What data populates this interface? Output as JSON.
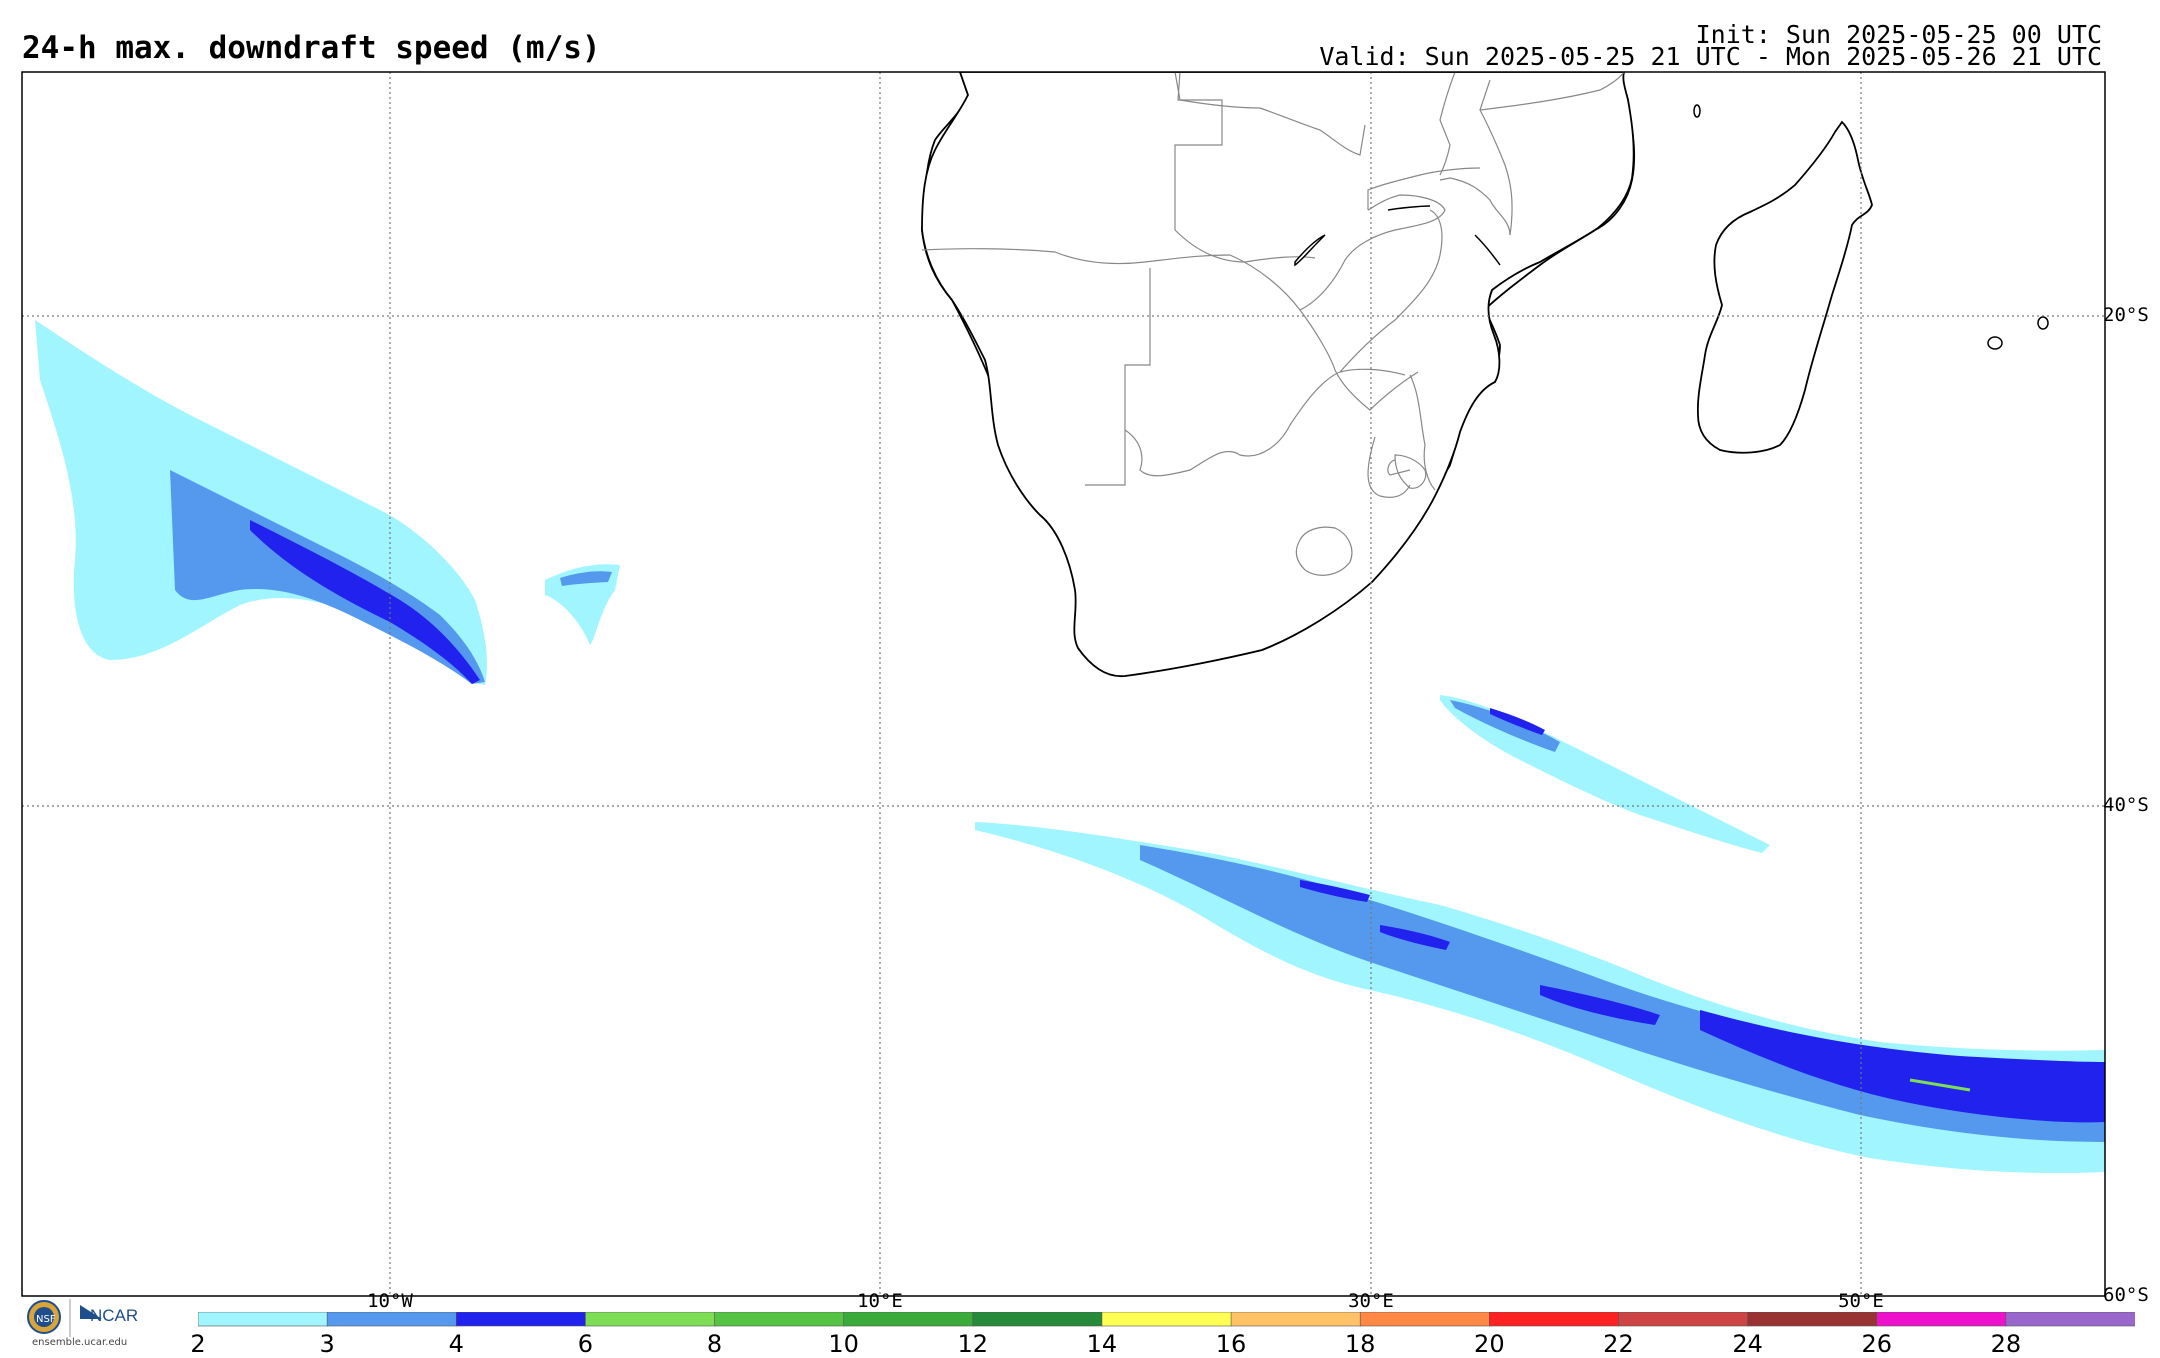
{
  "title": "24-h max. downdraft speed (m/s)",
  "init_text": "Init: Sun 2025-05-25 00 UTC",
  "valid_text": "Valid: Sun 2025-05-25 21 UTC - Mon 2025-05-26 21 UTC",
  "map": {
    "lat_labels": [
      "20°S",
      "40°S",
      "60°S"
    ],
    "lon_labels": [
      "10°W",
      "10°E",
      "30°E",
      "50°E"
    ],
    "gridline_style": "dotted",
    "land_color": "#ffffff",
    "coastline_color": "#000000",
    "border_color": "#888888"
  },
  "colorbar": {
    "ticks": [
      "2",
      "3",
      "4",
      "6",
      "8",
      "10",
      "12",
      "14",
      "16",
      "18",
      "20",
      "22",
      "24",
      "26",
      "28"
    ],
    "colors": [
      "#a0f5ff",
      "#5599ee",
      "#2222ee",
      "#7ddd55",
      "#55c444",
      "#3aaa3a",
      "#258a3a",
      "#ffff55",
      "#ffc266",
      "#ff8844",
      "#ff2222",
      "#cc4444",
      "#993333",
      "#ee11cc",
      "#9966cc"
    ]
  },
  "logo": {
    "name": "NCAR",
    "url": "ensemble.ucar.edu"
  }
}
